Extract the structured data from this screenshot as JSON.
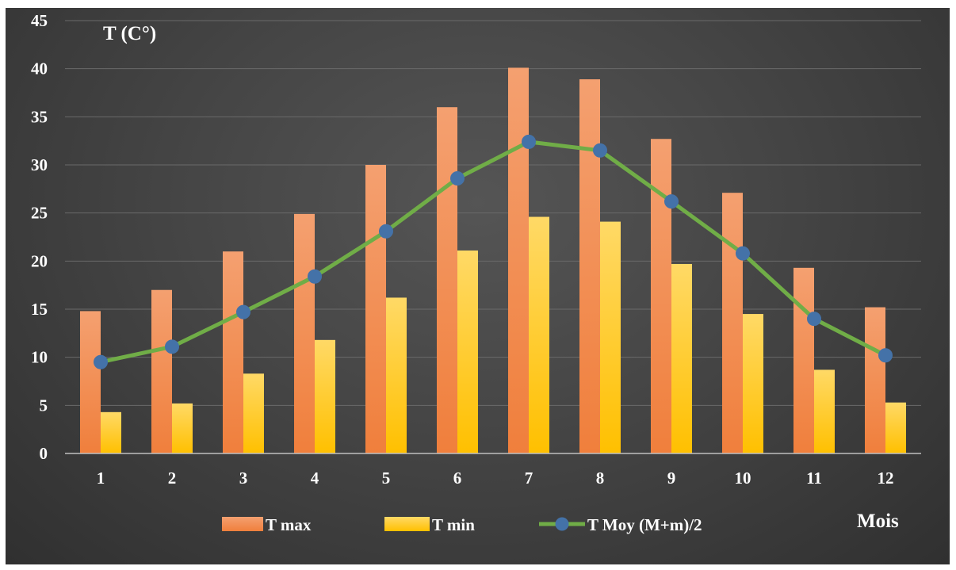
{
  "chart_data": {
    "type": "bar",
    "categories": [
      "1",
      "2",
      "3",
      "4",
      "5",
      "6",
      "7",
      "8",
      "9",
      "10",
      "11",
      "12"
    ],
    "series": [
      {
        "name": "T max",
        "type": "bar",
        "color": "#F07F3C",
        "values": [
          14.8,
          17.0,
          21.0,
          24.9,
          30.0,
          36.0,
          40.1,
          38.9,
          32.7,
          27.1,
          19.3,
          15.2
        ]
      },
      {
        "name": "T min",
        "type": "bar",
        "color": "#FFC000",
        "values": [
          4.3,
          5.2,
          8.3,
          11.8,
          16.2,
          21.1,
          24.6,
          24.1,
          19.7,
          14.5,
          8.7,
          5.3
        ]
      },
      {
        "name": "T Moy (M+m)/2",
        "type": "line",
        "color": "#70AD47",
        "marker_color": "#4472A8",
        "values": [
          9.5,
          11.1,
          14.7,
          18.4,
          23.1,
          28.6,
          32.4,
          31.5,
          26.2,
          20.8,
          14.0,
          10.2
        ]
      }
    ],
    "ylabel": "T (C°)",
    "xlabel": "Mois",
    "ylim": [
      0,
      45
    ],
    "yticks": [
      "0",
      "5",
      "10",
      "15",
      "20",
      "25",
      "30",
      "35",
      "40",
      "45"
    ],
    "grid": true,
    "legend": "bottom",
    "background": "#454545"
  }
}
